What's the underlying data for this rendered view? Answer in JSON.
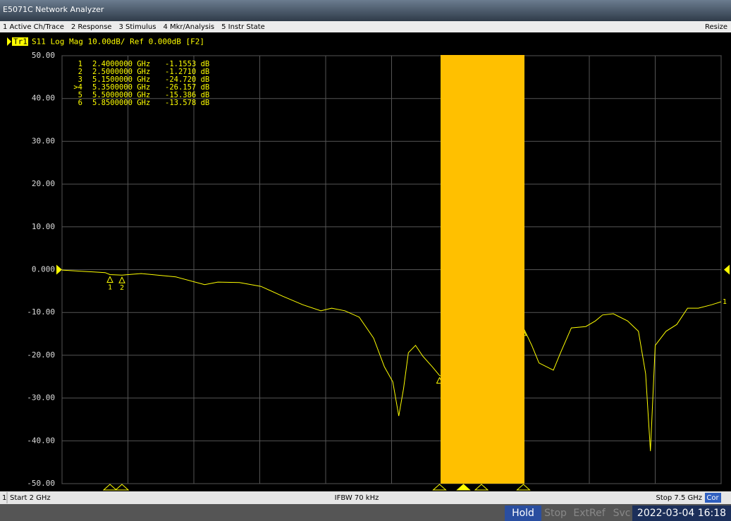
{
  "window": {
    "title": "E5071C Network Analyzer"
  },
  "menu": {
    "items": [
      "1 Active Ch/Trace",
      "2 Response",
      "3 Stimulus",
      "4 Mkr/Analysis",
      "5 Instr State"
    ],
    "right": "Resize"
  },
  "trace_header": {
    "trace": "Tr1",
    "text": "S11 Log Mag 10.00dB/ Ref 0.000dB [F2]"
  },
  "chart_data": {
    "type": "line",
    "x": [
      2.0,
      2.36,
      2.4,
      2.5,
      2.66,
      2.95,
      3.19,
      3.3,
      3.48,
      3.66,
      3.84,
      4.01,
      4.16,
      4.25,
      4.36,
      4.48,
      4.6,
      4.69,
      4.76,
      4.81,
      4.85,
      4.89,
      4.95,
      5.01,
      5.09,
      5.15,
      5.35,
      5.5,
      5.85,
      5.92,
      5.98,
      6.1,
      6.16,
      6.25,
      6.37,
      6.45,
      6.51,
      6.6,
      6.72,
      6.81,
      6.87,
      6.91,
      6.95,
      7.04,
      7.13,
      7.22,
      7.31,
      7.42,
      7.5
    ],
    "series": [
      {
        "color": "#ffff00",
        "values": [
          -0.1,
          -0.7,
          -1.1553,
          -1.271,
          -0.9,
          -1.7,
          -3.5,
          -2.9,
          -3.0,
          -3.9,
          -6.2,
          -8.2,
          -9.6,
          -9.0,
          -9.6,
          -11.1,
          -16.0,
          -22.7,
          -26.2,
          -34.2,
          -27.8,
          -19.4,
          -17.7,
          -20.2,
          -22.7,
          -24.72,
          -26.157,
          -15.386,
          -13.578,
          -17.7,
          -21.8,
          -23.5,
          -19.4,
          -13.6,
          -13.3,
          -12.0,
          -10.6,
          -10.3,
          -12.0,
          -14.4,
          -24.3,
          -42.4,
          -17.7,
          -14.4,
          -12.8,
          -9.0,
          -9.0,
          -8.2,
          -7.5
        ]
      }
    ],
    "xlim": [
      2.0,
      7.5
    ],
    "xticks": [
      2.0,
      2.55,
      3.1,
      3.65,
      4.2,
      4.75,
      5.3,
      5.85,
      6.4,
      6.95,
      7.5
    ],
    "ylim": [
      -50,
      50
    ],
    "yticks": [
      {
        "value": 50,
        "label": "50.00"
      },
      {
        "value": 40,
        "label": "40.00"
      },
      {
        "value": 30,
        "label": "30.00"
      },
      {
        "value": 20,
        "label": "20.00"
      },
      {
        "value": 10,
        "label": "10.00"
      },
      {
        "value": 0,
        "label": "0.000"
      },
      {
        "value": -10,
        "label": "-10.00"
      },
      {
        "value": -20,
        "label": "-20.00"
      },
      {
        "value": -30,
        "label": "-30.00"
      },
      {
        "value": -40,
        "label": "-40.00"
      },
      {
        "value": -50,
        "label": "-50.00"
      }
    ],
    "reference_level": 0,
    "grid": true,
    "trace_end_label": "1",
    "markers": {
      "names": [
        "1",
        "2",
        "3",
        ">4",
        "5",
        "6"
      ],
      "x": [
        2.4,
        2.5,
        5.15,
        5.35,
        5.5,
        5.85
      ],
      "values": [
        -1.1553,
        -1.271,
        -24.72,
        -26.157,
        -15.386,
        -13.578
      ],
      "x_labels": [
        "2.4000000 GHz",
        "2.5000000 GHz",
        "5.1500000 GHz",
        "5.3500000 GHz",
        "5.5000000 GHz",
        "5.8500000 GHz"
      ],
      "value_labels": [
        "-1.1553 dB",
        "-1.2710 dB",
        "-24.720 dB",
        "-26.157 dB",
        "-15.386 dB",
        "-13.578 dB"
      ]
    }
  },
  "status_bar": {
    "channel": "1",
    "start": "Start 2 GHz",
    "ifbw": "IFBW 70 kHz",
    "stop": "Stop 7.5 GHz",
    "correction": "Cor"
  },
  "bottom_bar": {
    "hold": "Hold",
    "stop": "Stop",
    "extref": "ExtRef",
    "svc": "Svc",
    "datetime": "2022-03-04 16:18"
  }
}
